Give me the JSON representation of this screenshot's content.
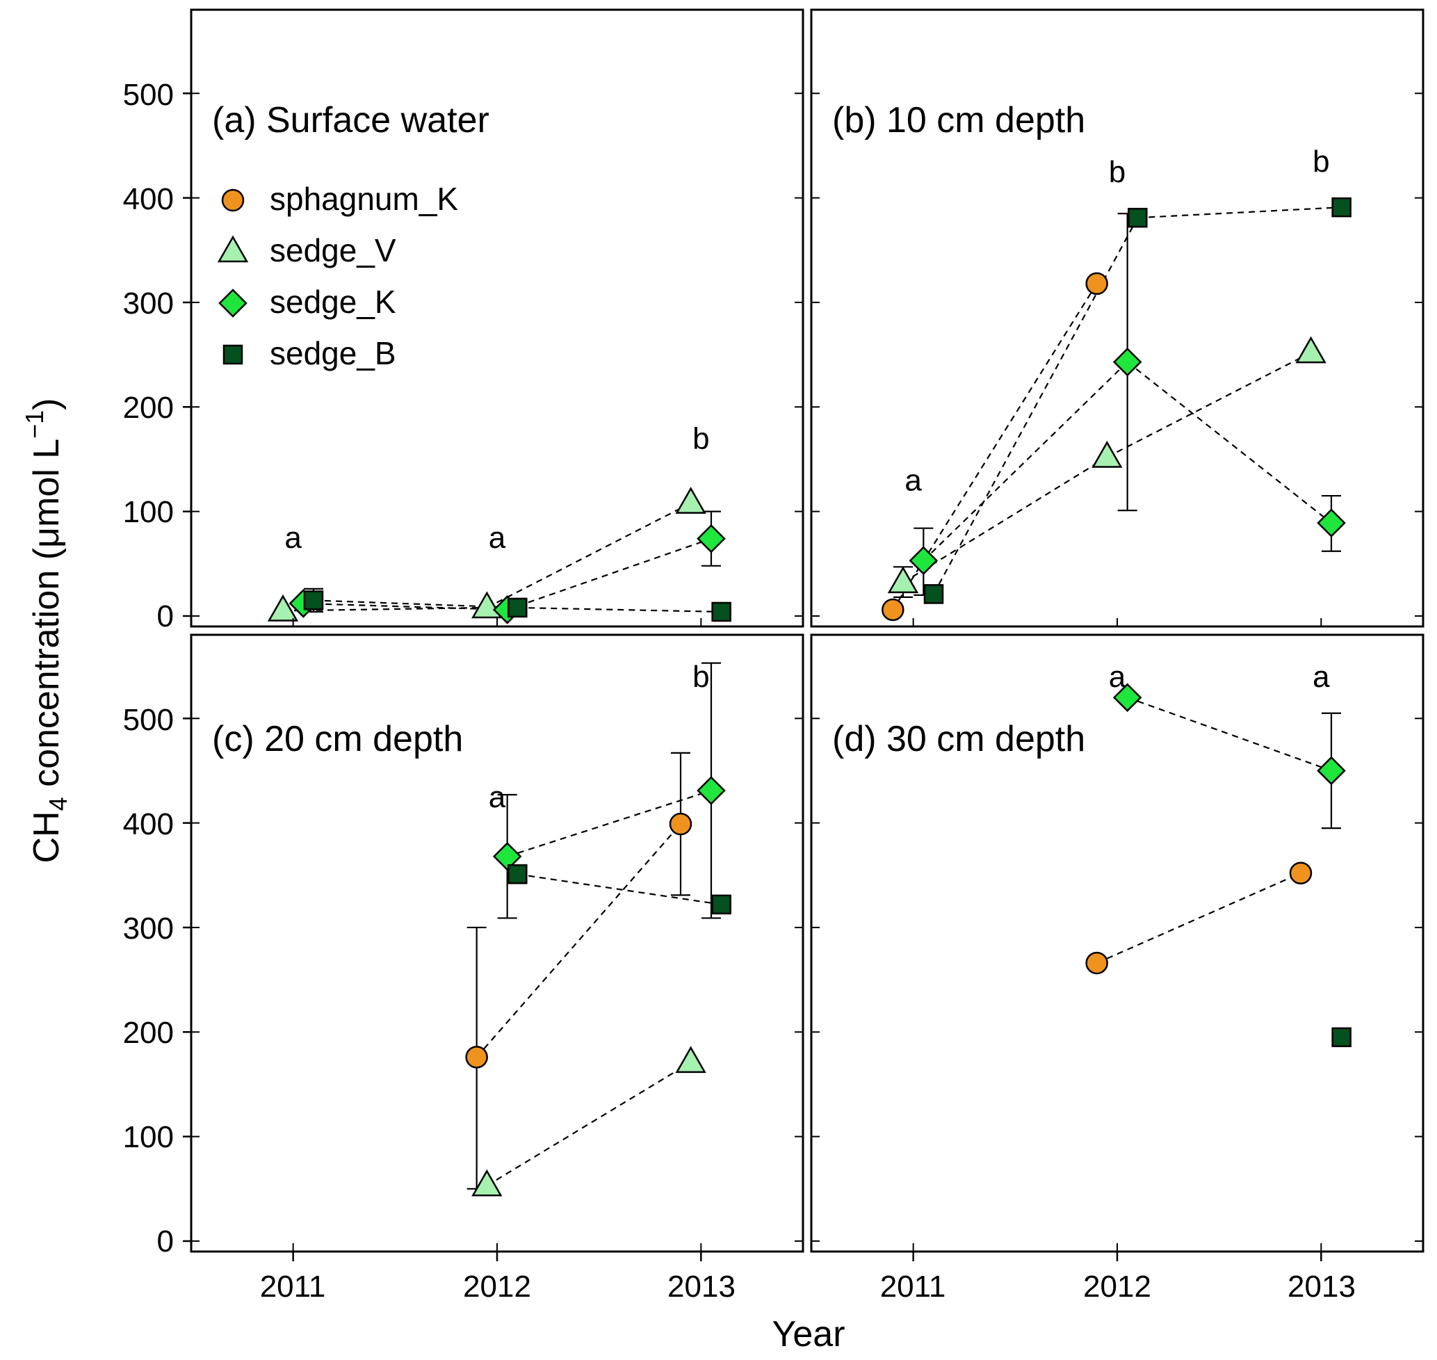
{
  "chart_data": {
    "type": "scatter",
    "figure": {
      "ylabel_prefix": "CH",
      "ylabel_subscript": "4",
      "ylabel_main": " concentration (μmol L",
      "ylabel_superscript": "−1",
      "ylabel_suffix": ")",
      "xlabel": "Year",
      "x_ticks": [
        2011,
        2012,
        2013
      ],
      "x_tick_labels": [
        "2011",
        "2012",
        "2013"
      ],
      "xlim": [
        2010.5,
        2013.5
      ],
      "y_ticks": [
        0,
        100,
        200,
        300,
        400,
        500
      ],
      "y_tick_labels": [
        "0",
        "100",
        "200",
        "300",
        "400",
        "500"
      ]
    },
    "legend": {
      "location": "upper-left of panel (a)",
      "entries": [
        {
          "series": "sphagnum_K",
          "label": "sphagnum_K",
          "marker": "circle",
          "color": "#f0931e"
        },
        {
          "series": "sedge_V",
          "label": "sedge_V",
          "marker": "triangle",
          "color": "#a6f0b0"
        },
        {
          "series": "sedge_K",
          "label": "sedge_K",
          "marker": "diamond",
          "color": "#1ee63c"
        },
        {
          "series": "sedge_B",
          "label": "sedge_B",
          "marker": "square",
          "color": "#04501e"
        }
      ]
    },
    "panels": [
      {
        "title": "(a) Surface water",
        "ylim": [
          -10,
          580
        ],
        "letters": [
          {
            "x": 2011,
            "y": 65,
            "text": "a"
          },
          {
            "x": 2012,
            "y": 65,
            "text": "a"
          },
          {
            "x": 2013,
            "y": 160,
            "text": "b"
          }
        ],
        "series": [
          {
            "name": "sedge_V",
            "points": [
              {
                "year": 2011,
                "y": 5
              },
              {
                "year": 2012,
                "y": 8
              },
              {
                "year": 2013,
                "y": 108
              }
            ]
          },
          {
            "name": "sedge_K",
            "points": [
              {
                "year": 2011,
                "y": 12
              },
              {
                "year": 2012,
                "y": 6
              },
              {
                "year": 2013,
                "y": 74,
                "err_low": 48,
                "err_high": 100
              }
            ]
          },
          {
            "name": "sedge_B",
            "points": [
              {
                "year": 2011,
                "y": 15,
                "err_low": 4,
                "err_high": 26
              },
              {
                "year": 2012,
                "y": 8,
                "err_low": 2,
                "err_high": 16
              },
              {
                "year": 2013,
                "y": 4
              }
            ]
          }
        ]
      },
      {
        "title": "(b) 10 cm depth",
        "ylim": [
          -10,
          580
        ],
        "letters": [
          {
            "x": 2011,
            "y": 120,
            "text": "a"
          },
          {
            "x": 2012,
            "y": 415,
            "text": "b"
          },
          {
            "x": 2013,
            "y": 425,
            "text": "b"
          }
        ],
        "series": [
          {
            "name": "sphagnum_K",
            "points": [
              {
                "year": 2011,
                "y": 6
              },
              {
                "year": 2012,
                "y": 318
              }
            ]
          },
          {
            "name": "sedge_V",
            "points": [
              {
                "year": 2011,
                "y": 32,
                "err_low": 18,
                "err_high": 47
              },
              {
                "year": 2012,
                "y": 152
              },
              {
                "year": 2013,
                "y": 252
              }
            ]
          },
          {
            "name": "sedge_K",
            "points": [
              {
                "year": 2011,
                "y": 53,
                "err_low": 20,
                "err_high": 84
              },
              {
                "year": 2012,
                "y": 243,
                "err_low": 101,
                "err_high": 385
              },
              {
                "year": 2013,
                "y": 89,
                "err_low": 62,
                "err_high": 115
              }
            ]
          },
          {
            "name": "sedge_B",
            "points": [
              {
                "year": 2011,
                "y": 21
              },
              {
                "year": 2012,
                "y": 381
              },
              {
                "year": 2013,
                "y": 391
              }
            ]
          }
        ]
      },
      {
        "title": "(c) 20 cm depth",
        "ylim": [
          -10,
          580
        ],
        "letters": [
          {
            "x": 2012,
            "y": 415,
            "text": "a"
          },
          {
            "x": 2013,
            "y": 530,
            "text": "b"
          }
        ],
        "series": [
          {
            "name": "sphagnum_K",
            "points": [
              {
                "year": 2012,
                "y": 176,
                "err_low": 50,
                "err_high": 300
              },
              {
                "year": 2013,
                "y": 399,
                "err_low": 331,
                "err_high": 467
              }
            ]
          },
          {
            "name": "sedge_V",
            "points": [
              {
                "year": 2012,
                "y": 53
              },
              {
                "year": 2013,
                "y": 171
              }
            ]
          },
          {
            "name": "sedge_K",
            "points": [
              {
                "year": 2012,
                "y": 368,
                "err_low": 309,
                "err_high": 427
              },
              {
                "year": 2013,
                "y": 431,
                "err_low": 309,
                "err_high": 553
              }
            ]
          },
          {
            "name": "sedge_B",
            "points": [
              {
                "year": 2012,
                "y": 351
              },
              {
                "year": 2013,
                "y": 322
              }
            ]
          }
        ]
      },
      {
        "title": "(d) 30 cm depth",
        "ylim": [
          -10,
          580
        ],
        "letters": [
          {
            "x": 2012,
            "y": 530,
            "text": "a"
          },
          {
            "x": 2013,
            "y": 530,
            "text": "a"
          }
        ],
        "series": [
          {
            "name": "sphagnum_K",
            "points": [
              {
                "year": 2012,
                "y": 266
              },
              {
                "year": 2013,
                "y": 352
              }
            ]
          },
          {
            "name": "sedge_K",
            "points": [
              {
                "year": 2012,
                "y": 520
              },
              {
                "year": 2013,
                "y": 450,
                "err_low": 395,
                "err_high": 505
              }
            ]
          },
          {
            "name": "sedge_B",
            "points": [
              {
                "year": 2013,
                "y": 195
              }
            ]
          }
        ]
      }
    ]
  }
}
